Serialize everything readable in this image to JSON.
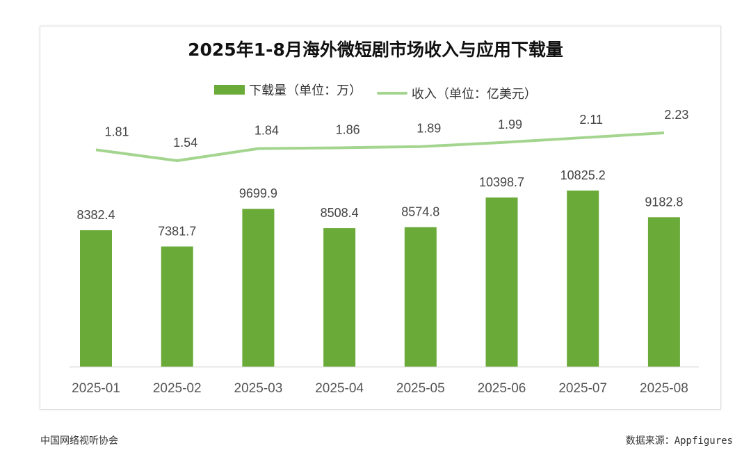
{
  "chart_data": {
    "type": "bar",
    "title": "2025年1-8月海外微短剧市场收入与应用下载量",
    "categories": [
      "2025-01",
      "2025-02",
      "2025-03",
      "2025-04",
      "2025-05",
      "2025-06",
      "2025-07",
      "2025-08"
    ],
    "series": [
      {
        "name": "下载量（单位：万）",
        "type": "bar",
        "color": "#6aaa38",
        "values": [
          8382.4,
          7381.7,
          9699.9,
          8508.4,
          8574.8,
          10398.7,
          10825.2,
          9182.8
        ]
      },
      {
        "name": "收入（单位：亿美元）",
        "type": "line",
        "color": "#a4d58f",
        "values": [
          1.81,
          1.54,
          1.84,
          1.86,
          1.89,
          1.99,
          2.11,
          2.23
        ]
      }
    ],
    "data_labels": true,
    "grid": false,
    "legend": "top"
  },
  "footer": {
    "left": "中国网络视听协会",
    "right": "数据来源：Appfigures"
  }
}
